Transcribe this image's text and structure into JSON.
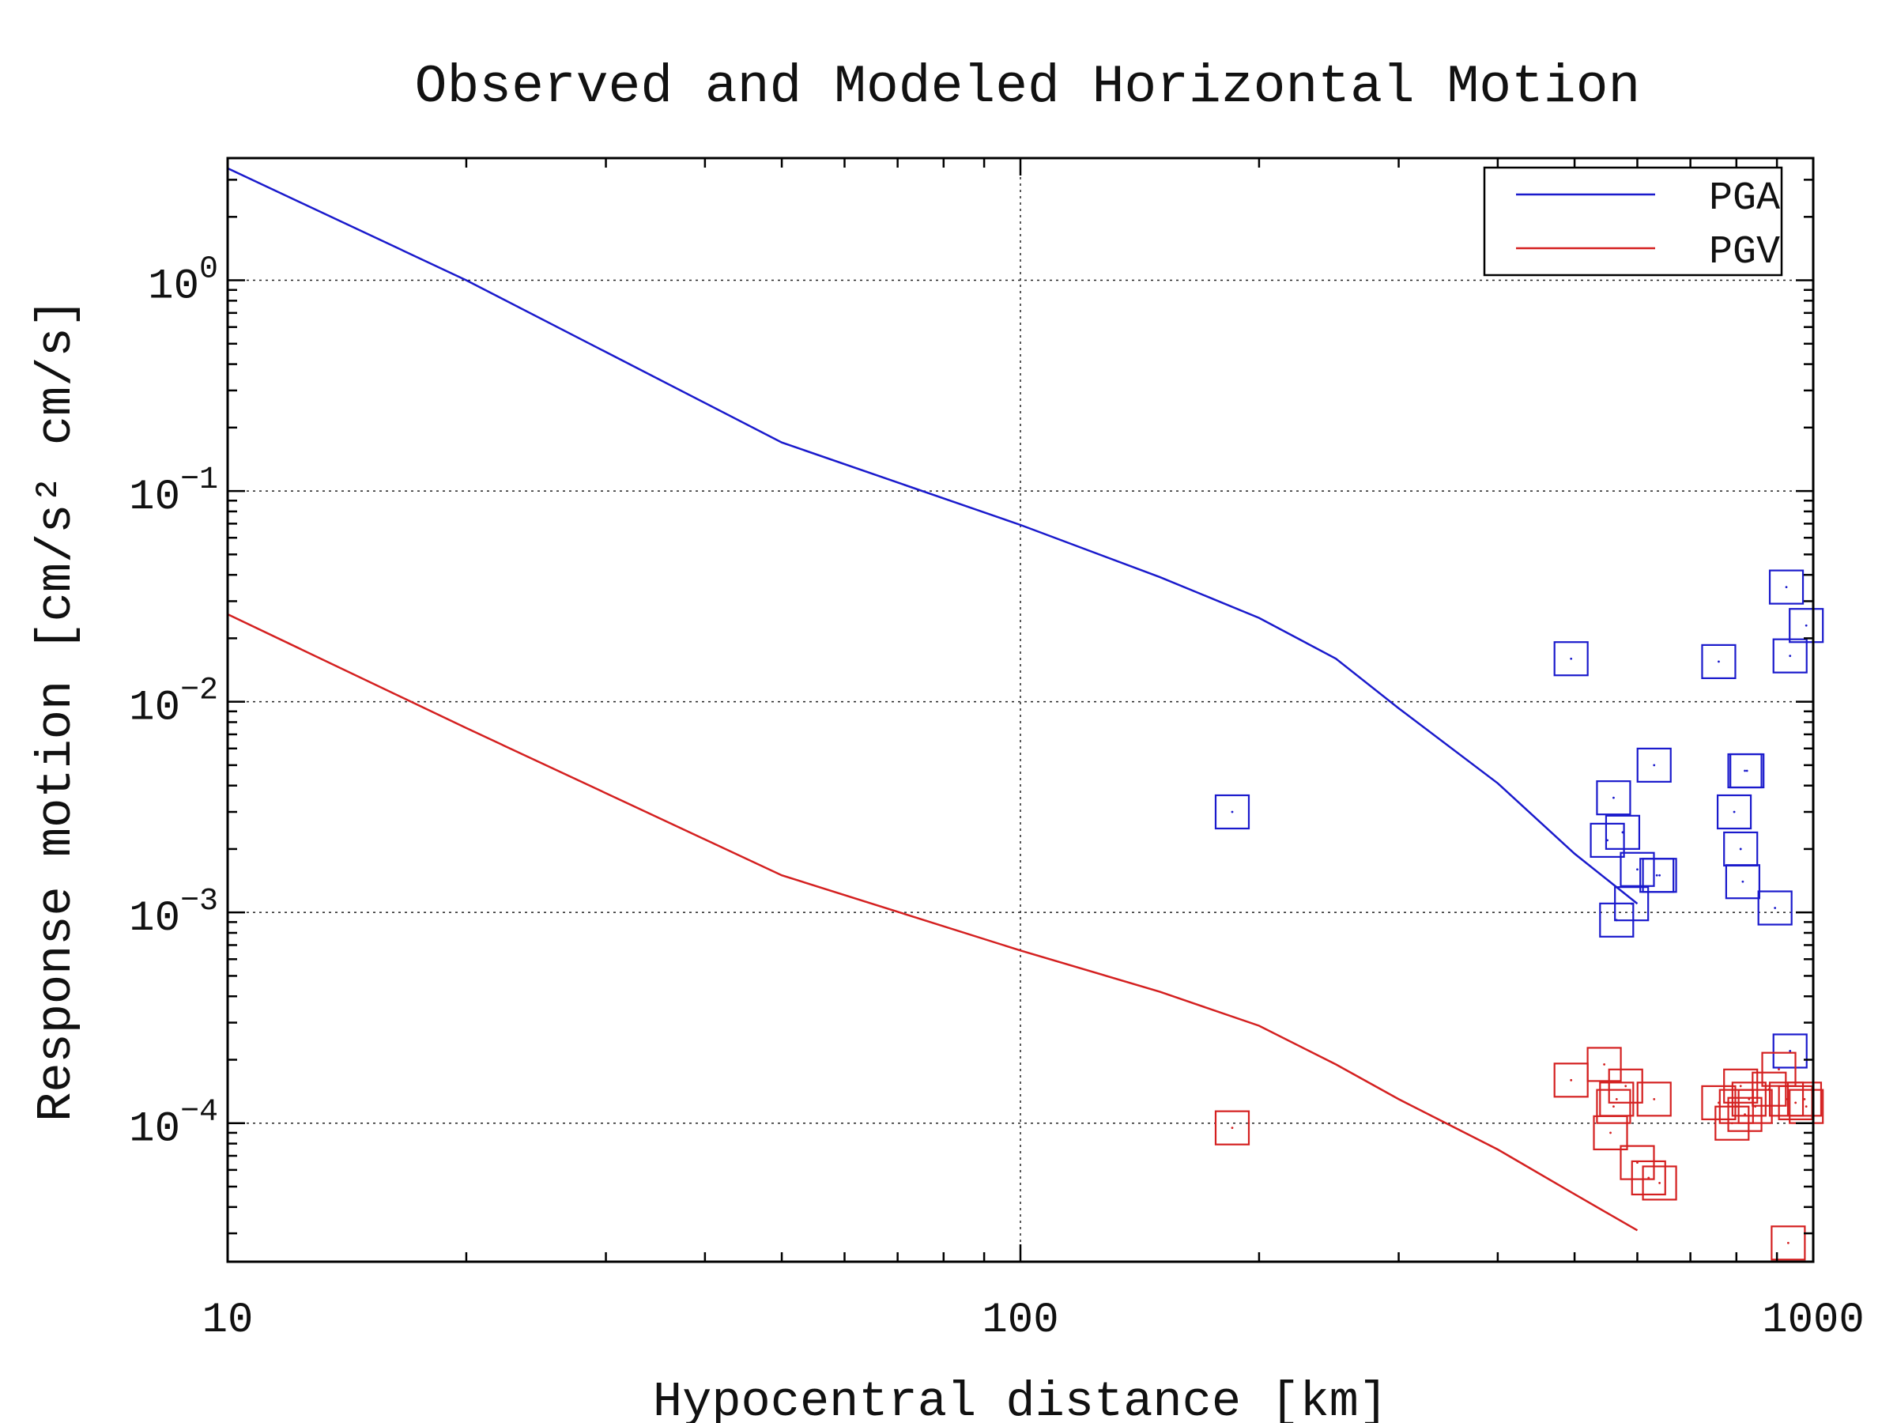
{
  "chart_data": {
    "type": "scatter",
    "title": "Observed and Modeled Horizontal Motion",
    "xlabel": "Hypocentral distance [km]",
    "ylabel": "Response motion  [cm/s²  cm/s]",
    "xscale": "log",
    "yscale": "log",
    "xlim": [
      10,
      1000
    ],
    "ylim": [
      2.2e-05,
      3.8
    ],
    "grid": true,
    "legend_position": "top-right",
    "x_ticks": [
      {
        "value": 10,
        "label": "10"
      },
      {
        "value": 100,
        "label": "100"
      },
      {
        "value": 1000,
        "label": "1000"
      }
    ],
    "y_ticks": [
      {
        "value": 1,
        "base": "10",
        "exp": "0"
      },
      {
        "value": 0.1,
        "base": "10",
        "exp": "−1"
      },
      {
        "value": 0.01,
        "base": "10",
        "exp": "−2"
      },
      {
        "value": 0.001,
        "base": "10",
        "exp": "−3"
      },
      {
        "value": 0.0001,
        "base": "10",
        "exp": "−4"
      }
    ],
    "colors": {
      "pga": "#1a1acc",
      "pgv": "#d42020"
    },
    "series": [
      {
        "name": "PGA",
        "kind": "line",
        "color": "#1a1acc",
        "x": [
          10,
          20,
          50,
          100,
          150,
          200,
          250,
          300,
          400,
          500,
          600
        ],
        "y": [
          3.4,
          1.0,
          0.17,
          0.069,
          0.039,
          0.025,
          0.016,
          0.0093,
          0.0041,
          0.0019,
          0.0011
        ]
      },
      {
        "name": "PGV",
        "kind": "line",
        "color": "#d42020",
        "x": [
          10,
          20,
          50,
          100,
          150,
          200,
          250,
          300,
          400,
          500,
          600
        ],
        "y": [
          0.026,
          0.0075,
          0.0015,
          0.00066,
          0.00042,
          0.00029,
          0.00019,
          0.00013,
          7.5e-05,
          4.6e-05,
          3.1e-05
        ]
      },
      {
        "name": "PGA observed",
        "kind": "markers",
        "color": "#1a1acc",
        "x": [
          185,
          495,
          550,
          560,
          565,
          575,
          590,
          600,
          630,
          635,
          640,
          760,
          795,
          810,
          815,
          820,
          825,
          895,
          925,
          935,
          935,
          980
        ],
        "y": [
          0.003,
          0.016,
          0.0022,
          0.0035,
          0.00092,
          0.0024,
          0.0011,
          0.0016,
          0.005,
          0.0015,
          0.0015,
          0.0155,
          0.003,
          0.002,
          0.0014,
          0.0047,
          0.0047,
          0.00105,
          0.035,
          0.0165,
          0.00022,
          0.023
        ]
      },
      {
        "name": "PGV observed",
        "kind": "markers",
        "color": "#d42020",
        "x": [
          185,
          495,
          545,
          555,
          560,
          565,
          580,
          600,
          620,
          630,
          640,
          760,
          790,
          800,
          810,
          820,
          830,
          845,
          880,
          905,
          925,
          930,
          950,
          975,
          980
        ],
        "y": [
          9.5e-05,
          0.00016,
          0.00019,
          9e-05,
          0.00012,
          0.00013,
          0.00015,
          6.5e-05,
          5.5e-05,
          0.00013,
          5.2e-05,
          0.000125,
          0.0001,
          0.00012,
          0.00015,
          0.00011,
          0.00013,
          0.00012,
          0.000145,
          0.00018,
          0.00013,
          2.7e-05,
          0.000125,
          0.00013,
          0.00012
        ]
      }
    ],
    "legend": [
      {
        "label": "PGA",
        "color": "#1a1acc"
      },
      {
        "label": "PGV",
        "color": "#d42020"
      }
    ]
  }
}
